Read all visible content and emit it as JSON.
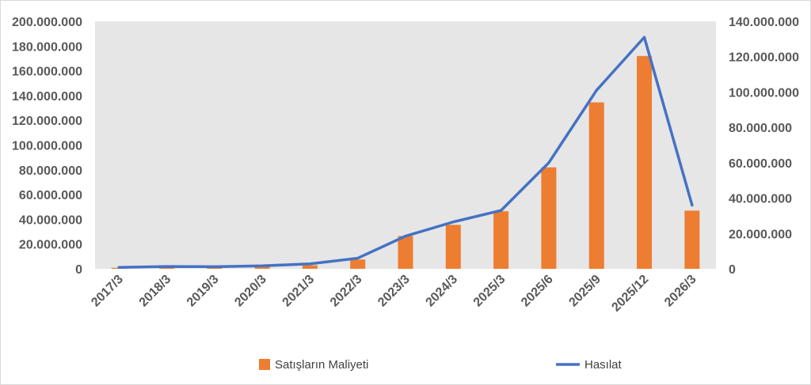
{
  "chart_data": {
    "type": "bar",
    "title": "",
    "xlabel": "",
    "ylabel": "",
    "categories": [
      "2017/3",
      "2018/3",
      "2019/3",
      "2020/3",
      "2021/3",
      "2022/3",
      "2023/3",
      "2024/3",
      "2025/3",
      "2025/6",
      "2025/9",
      "2025/12",
      "2026/3"
    ],
    "series": [
      {
        "name": "Satışların Maliyeti",
        "type": "bar",
        "axis": "left",
        "color": "#ED7D31",
        "values": [
          800000,
          1000000,
          1200000,
          1700000,
          2800000,
          7500000,
          26500000,
          35500000,
          46500000,
          82000000,
          134500000,
          172000000,
          47000000
        ]
      },
      {
        "name": "Hasılat",
        "type": "line",
        "axis": "right",
        "color": "#4472C4",
        "values": [
          800000,
          1300000,
          1200000,
          1700000,
          2800000,
          6000000,
          18500000,
          26500000,
          33000000,
          60000000,
          101000000,
          131000000,
          36000000
        ]
      }
    ],
    "y_left": {
      "min": 0,
      "max": 200000000,
      "ticks": [
        "0",
        "20.000.000",
        "40.000.000",
        "60.000.000",
        "80.000.000",
        "100.000.000",
        "120.000.000",
        "140.000.000",
        "160.000.000",
        "180.000.000",
        "200.000.000"
      ]
    },
    "y_right": {
      "min": 0,
      "max": 140000000,
      "ticks": [
        "0",
        "20.000.000",
        "40.000.000",
        "60.000.000",
        "80.000.000",
        "100.000.000",
        "120.000.000",
        "140.000.000"
      ]
    },
    "grid": false,
    "legend_position": "bottom"
  }
}
